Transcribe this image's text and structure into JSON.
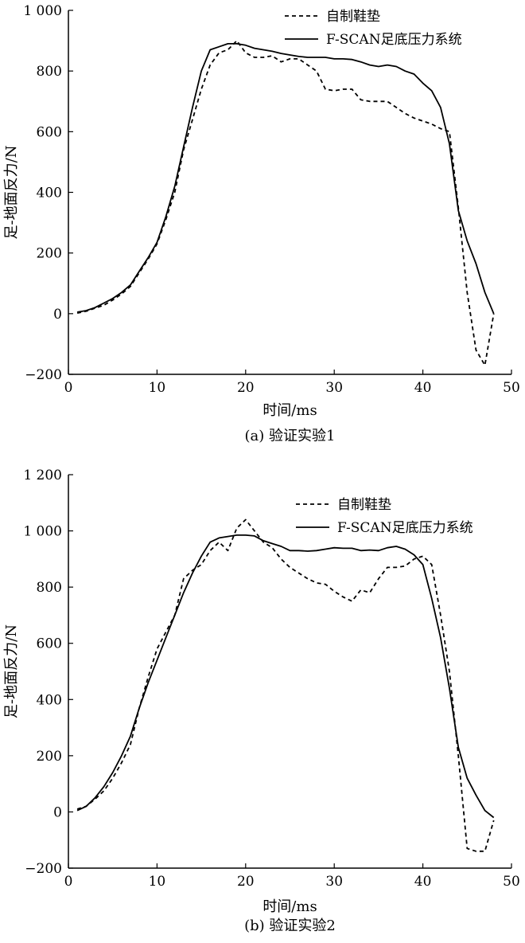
{
  "chart_data": [
    {
      "type": "line",
      "caption": "(a) 验证实验1",
      "xlabel": "时间/ms",
      "ylabel": "足-地面反力/N",
      "xlim": [
        0,
        50
      ],
      "ylim": [
        -200,
        1000
      ],
      "xticks": [
        0,
        10,
        20,
        30,
        40,
        50
      ],
      "yticks": [
        -200,
        0,
        200,
        400,
        600,
        800,
        1000
      ],
      "xtick_labels": [
        "0",
        "10",
        "20",
        "30",
        "40",
        "50"
      ],
      "ytick_labels": [
        "−200",
        "0",
        "200",
        "400",
        "600",
        "800",
        "1 000"
      ],
      "legend_position": "top-right",
      "grid": false,
      "series": [
        {
          "name": "自制鞋垫",
          "style": "dashed",
          "x": [
            1,
            2,
            3,
            4,
            5,
            6,
            7,
            8,
            9,
            10,
            11,
            12,
            13,
            14,
            15,
            16,
            17,
            18,
            19,
            20,
            21,
            22,
            23,
            24,
            25,
            26,
            27,
            28,
            29,
            30,
            31,
            32,
            33,
            34,
            35,
            36,
            37,
            38,
            39,
            40,
            41,
            42,
            43,
            44,
            45,
            46,
            47,
            48
          ],
          "y": [
            2,
            8,
            18,
            28,
            45,
            65,
            90,
            135,
            180,
            230,
            310,
            400,
            540,
            640,
            740,
            820,
            860,
            870,
            900,
            860,
            845,
            845,
            850,
            830,
            840,
            840,
            820,
            800,
            740,
            735,
            740,
            740,
            705,
            700,
            700,
            700,
            680,
            660,
            645,
            635,
            625,
            610,
            600,
            350,
            70,
            -120,
            -170,
            0
          ]
        },
        {
          "name": "F-SCAN足底压力系统",
          "style": "solid",
          "x": [
            1,
            2,
            3,
            4,
            5,
            6,
            7,
            8,
            9,
            10,
            11,
            12,
            13,
            14,
            15,
            16,
            17,
            18,
            19,
            20,
            21,
            22,
            23,
            24,
            25,
            26,
            27,
            28,
            29,
            30,
            31,
            32,
            33,
            34,
            35,
            36,
            37,
            38,
            39,
            40,
            41,
            42,
            43,
            44,
            45,
            46,
            47,
            48
          ],
          "y": [
            5,
            10,
            20,
            35,
            50,
            70,
            95,
            140,
            185,
            235,
            320,
            420,
            550,
            680,
            800,
            870,
            880,
            890,
            890,
            885,
            875,
            870,
            865,
            858,
            853,
            848,
            845,
            845,
            845,
            840,
            840,
            838,
            830,
            820,
            815,
            820,
            815,
            800,
            790,
            760,
            735,
            680,
            560,
            340,
            240,
            165,
            70,
            0
          ]
        }
      ]
    },
    {
      "type": "line",
      "caption": "(b) 验证实验2",
      "xlabel": "时间/ms",
      "ylabel": "足-地面反力/N",
      "xlim": [
        0,
        50
      ],
      "ylim": [
        -200,
        1200
      ],
      "xticks": [
        0,
        10,
        20,
        30,
        40,
        50
      ],
      "yticks": [
        -200,
        0,
        200,
        400,
        600,
        800,
        1000,
        1200
      ],
      "xtick_labels": [
        "0",
        "10",
        "20",
        "30",
        "40",
        "50"
      ],
      "ytick_labels": [
        "−200",
        "0",
        "200",
        "400",
        "600",
        "800",
        "1 000",
        "1 200"
      ],
      "legend_position": "top-right",
      "grid": false,
      "series": [
        {
          "name": "自制鞋垫",
          "style": "dashed",
          "x": [
            1,
            2,
            3,
            4,
            5,
            6,
            7,
            8,
            9,
            10,
            11,
            12,
            13,
            14,
            15,
            16,
            17,
            18,
            19,
            20,
            21,
            22,
            23,
            24,
            25,
            26,
            27,
            28,
            29,
            30,
            31,
            32,
            33,
            34,
            35,
            36,
            37,
            38,
            39,
            40,
            41,
            42,
            43,
            44,
            45,
            46,
            47,
            48
          ],
          "y": [
            10,
            20,
            45,
            75,
            120,
            175,
            240,
            370,
            480,
            580,
            640,
            700,
            830,
            860,
            880,
            930,
            960,
            930,
            1010,
            1040,
            1000,
            960,
            940,
            900,
            870,
            850,
            830,
            815,
            810,
            785,
            765,
            750,
            790,
            780,
            830,
            870,
            870,
            875,
            900,
            910,
            880,
            700,
            500,
            200,
            -130,
            -140,
            -140,
            -30
          ]
        },
        {
          "name": "F-SCAN足底压力系统",
          "style": "solid",
          "x": [
            1,
            2,
            3,
            4,
            5,
            6,
            7,
            8,
            9,
            10,
            11,
            12,
            13,
            14,
            15,
            16,
            17,
            18,
            19,
            20,
            21,
            22,
            23,
            24,
            25,
            26,
            27,
            28,
            29,
            30,
            31,
            32,
            33,
            34,
            35,
            36,
            37,
            38,
            39,
            40,
            41,
            42,
            43,
            44,
            45,
            46,
            47,
            48
          ],
          "y": [
            5,
            20,
            50,
            90,
            140,
            200,
            270,
            370,
            460,
            540,
            620,
            700,
            780,
            850,
            910,
            960,
            975,
            980,
            985,
            985,
            982,
            965,
            955,
            945,
            930,
            930,
            928,
            930,
            935,
            940,
            938,
            938,
            930,
            932,
            930,
            940,
            945,
            935,
            915,
            880,
            760,
            620,
            440,
            230,
            120,
            60,
            5,
            -20
          ]
        }
      ]
    }
  ]
}
